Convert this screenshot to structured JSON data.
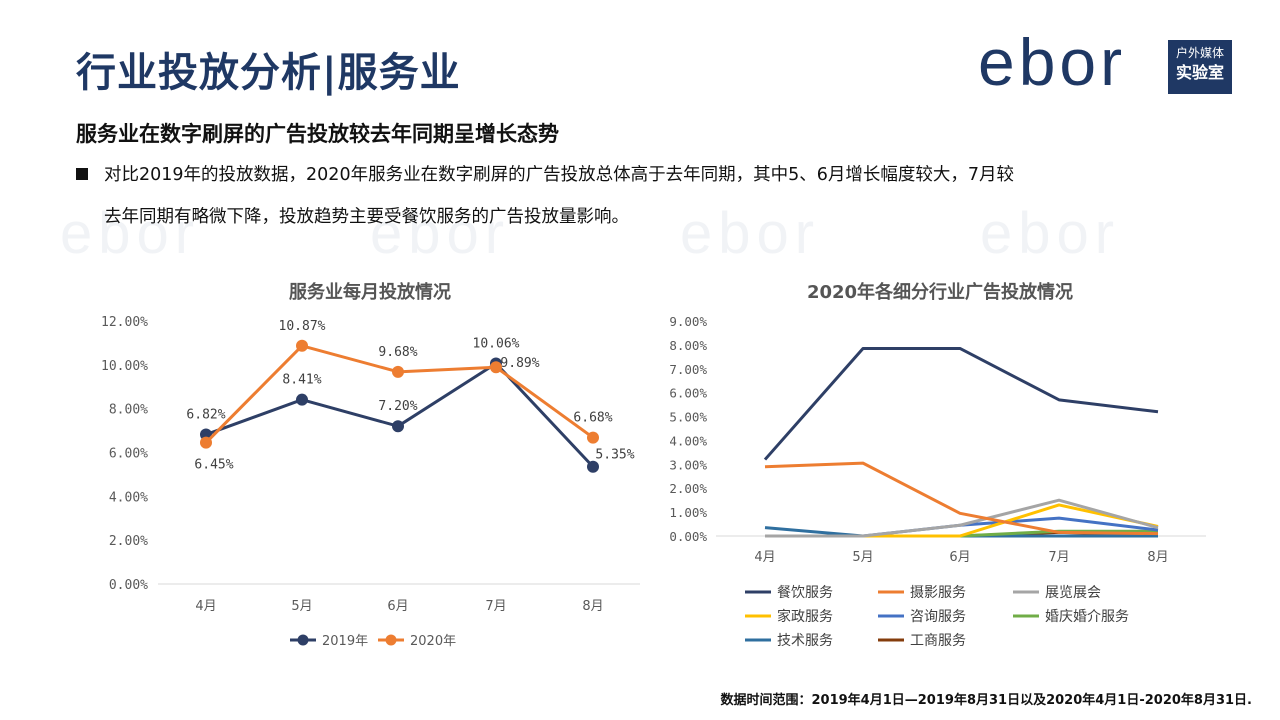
{
  "page": {
    "title": "行业投放分析|服务业",
    "subtitle": "服务业在数字刷屏的广告投放较去年同期呈增长态势",
    "bullet_line1": "对比2019年的投放数据，2020年服务业在数字刷屏的广告投放总体高于去年同期，其中5、6月增长幅度较大，7月较",
    "bullet_line2": "去年同期有略微下降，投放趋势主要受餐饮服务的广告投放量影响。",
    "footnote": "数据时间范围：2019年4月1日—2019年8月31日以及2020年4月1日-2020年8月31日."
  },
  "logo": {
    "wordmark": "ebor",
    "tag_top": "户外媒体",
    "tag_bottom": "实验室"
  },
  "chart_data": [
    {
      "type": "line",
      "title": "服务业每月投放情况",
      "categories": [
        "4月",
        "5月",
        "6月",
        "7月",
        "8月"
      ],
      "ylim": [
        0,
        12
      ],
      "yticks": [
        "0.00%",
        "2.00%",
        "4.00%",
        "6.00%",
        "8.00%",
        "10.00%",
        "12.00%"
      ],
      "legend_position": "bottom",
      "series": [
        {
          "name": "2019年",
          "color": "#2e3f66",
          "values": [
            6.82,
            8.41,
            7.2,
            10.06,
            5.35
          ],
          "labels": [
            "6.82%",
            "8.41%",
            "7.20%",
            "10.06%",
            "5.35%"
          ]
        },
        {
          "name": "2020年",
          "color": "#ed7d31",
          "values": [
            6.45,
            10.87,
            9.68,
            9.89,
            6.68
          ],
          "labels": [
            "6.45%",
            "10.87%",
            "9.68%",
            "9.89%",
            "6.68%"
          ]
        }
      ]
    },
    {
      "type": "line",
      "title": "2020年各细分行业广告投放情况",
      "categories": [
        "4月",
        "5月",
        "6月",
        "7月",
        "8月"
      ],
      "ylim": [
        0,
        9
      ],
      "yticks": [
        "0.00%",
        "1.00%",
        "2.00%",
        "3.00%",
        "4.00%",
        "5.00%",
        "6.00%",
        "7.00%",
        "8.00%",
        "9.00%"
      ],
      "legend_position": "bottom",
      "series": [
        {
          "name": "餐饮服务",
          "color": "#2e3f66",
          "values": [
            3.2,
            7.85,
            7.85,
            5.7,
            5.2
          ]
        },
        {
          "name": "摄影服务",
          "color": "#ed7d31",
          "values": [
            2.9,
            3.05,
            0.95,
            0.15,
            0.1
          ]
        },
        {
          "name": "展览展会",
          "color": "#a5a5a5",
          "values": [
            0,
            0,
            0.45,
            1.5,
            0.35
          ]
        },
        {
          "name": "家政服务",
          "color": "#ffc000",
          "values": [
            0,
            0,
            0,
            1.3,
            0.4
          ]
        },
        {
          "name": "咨询服务",
          "color": "#4472c4",
          "values": [
            0,
            0,
            0.45,
            0.75,
            0.25
          ]
        },
        {
          "name": "婚庆婚介服务",
          "color": "#70ad47",
          "values": [
            0,
            0,
            0,
            0.2,
            0.2
          ]
        },
        {
          "name": "技术服务",
          "color": "#2f6f9f",
          "values": [
            0.35,
            0,
            0,
            0,
            0
          ]
        },
        {
          "name": "工商服务",
          "color": "#843c0c",
          "values": [
            0,
            0,
            0,
            0.15,
            0.05
          ]
        }
      ]
    }
  ]
}
